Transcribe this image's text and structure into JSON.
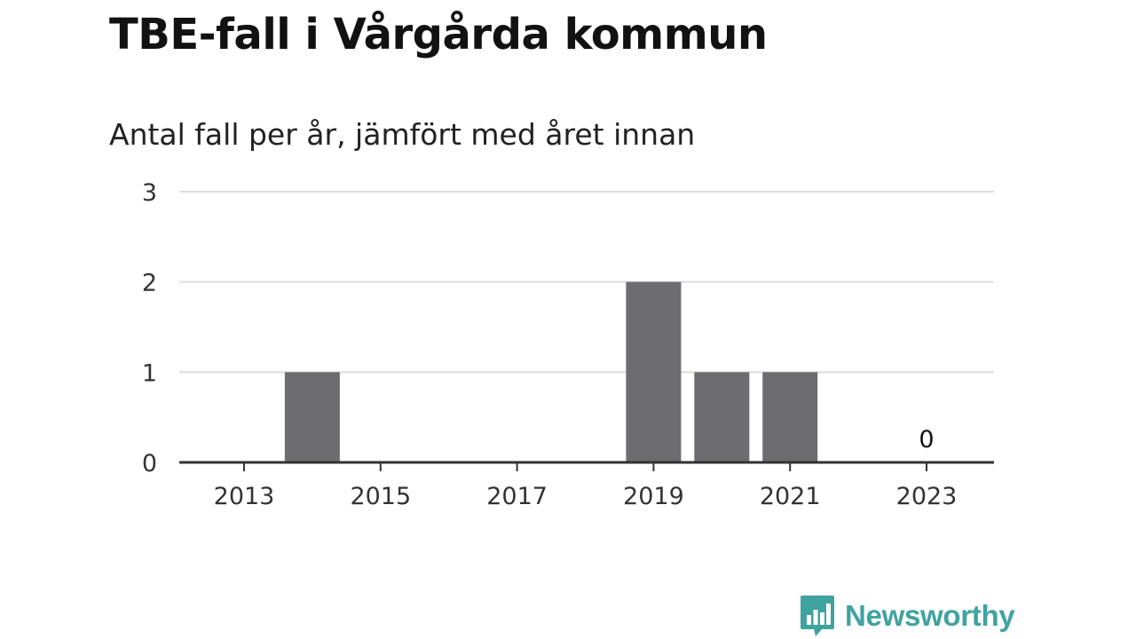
{
  "title": "TBE-fall i Vårgårda kommun",
  "subtitle": "Antal fall per år, jämfört med året innan",
  "brand": {
    "name": "Newsworthy",
    "color": "#3fa3a0"
  },
  "colors": {
    "bar": "#6d6c71",
    "grid": "#dddddd",
    "axis": "#333333",
    "text": "#333333"
  },
  "chart_data": {
    "type": "bar",
    "categories": [
      "2013",
      "2014",
      "2015",
      "2016",
      "2017",
      "2018",
      "2019",
      "2020",
      "2021",
      "2022",
      "2023"
    ],
    "values": [
      0,
      1,
      0,
      0,
      0,
      0,
      2,
      1,
      1,
      0,
      0
    ],
    "x_tick_labels": [
      "2013",
      "2015",
      "2017",
      "2019",
      "2021",
      "2023"
    ],
    "y_ticks": [
      0,
      1,
      2,
      3
    ],
    "ylim": [
      0,
      3
    ],
    "grid": true,
    "data_labels": [
      {
        "category": "2023",
        "text": "0"
      }
    ],
    "xlabel": "",
    "ylabel": ""
  }
}
